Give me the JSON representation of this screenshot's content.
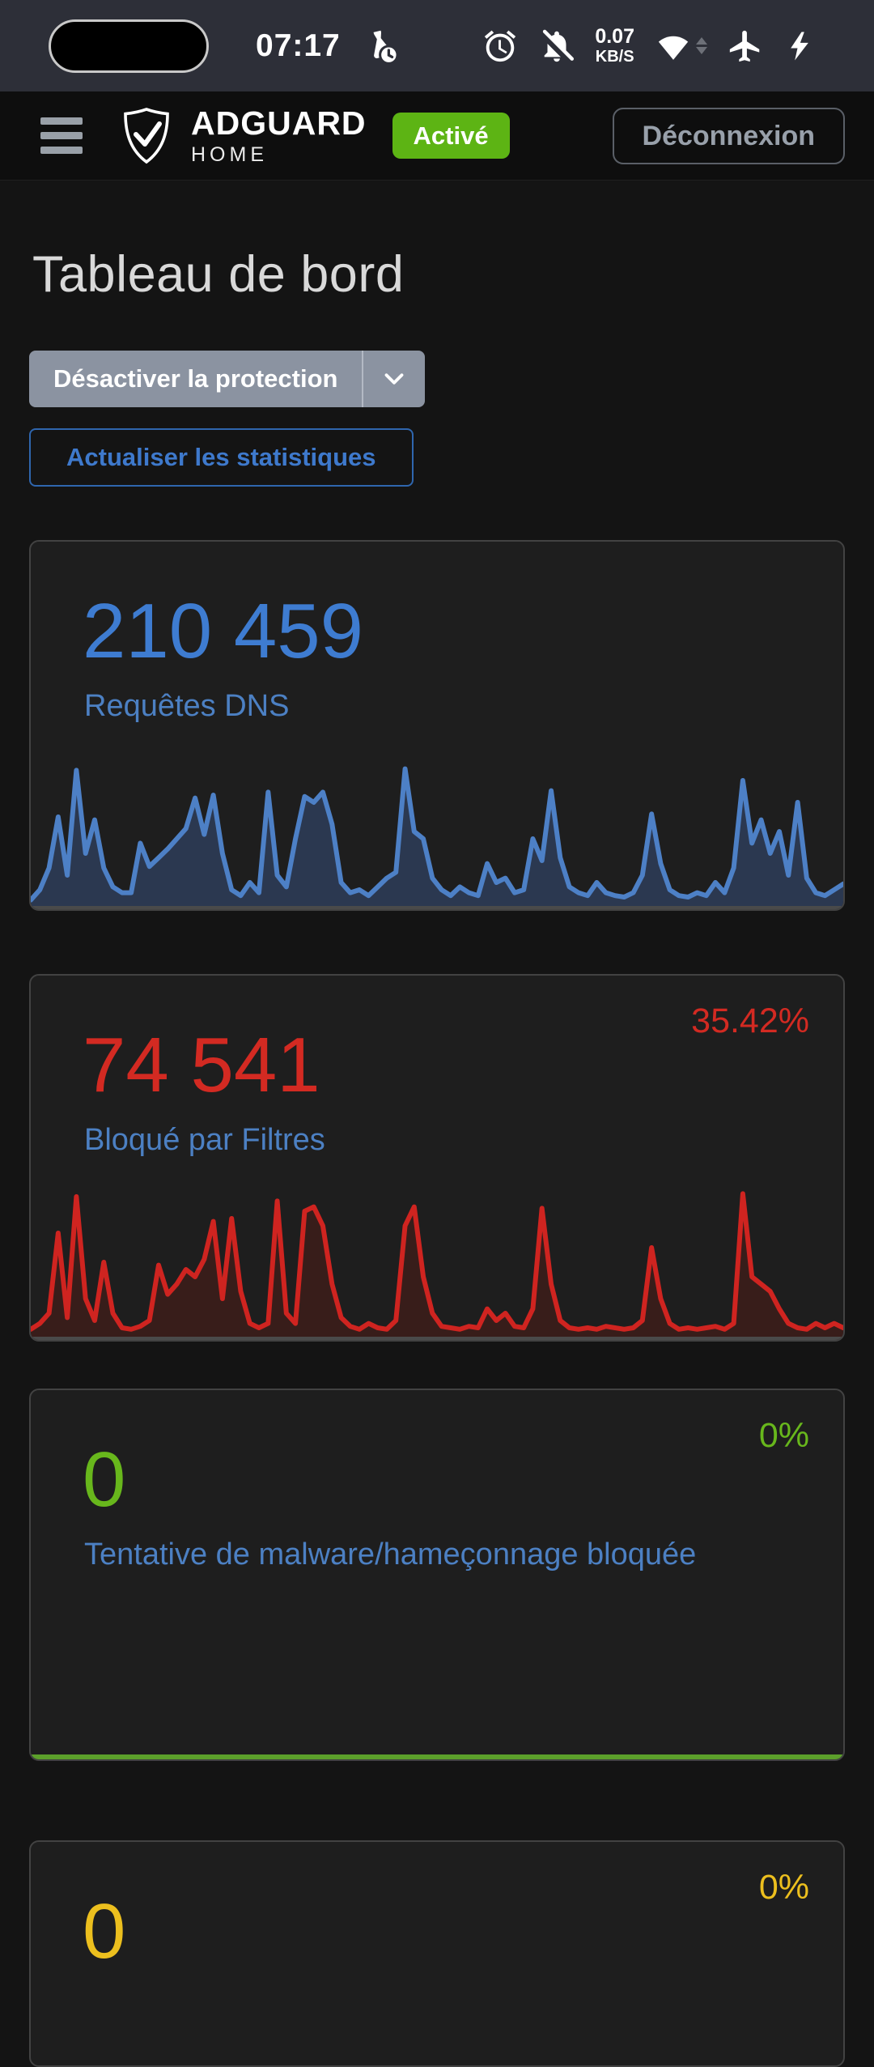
{
  "status_bar": {
    "time": "07:17",
    "network_speed_value": "0.07",
    "network_speed_unit": "KB/S",
    "icons": [
      "app-timer-icon",
      "alarm-icon",
      "notifications-off-icon",
      "wifi-icon",
      "airplane-mode-icon",
      "charging-bolt-icon"
    ]
  },
  "header": {
    "brand": "ADGUARD",
    "brand_sub": "HOME",
    "status_badge": "Activé",
    "logout_label": "Déconnexion"
  },
  "page": {
    "title": "Tableau de bord",
    "disable_protection_label": "Désactiver la protection",
    "refresh_stats_label": "Actualiser les statistiques"
  },
  "colors": {
    "accent_blue": "#3e79cc",
    "badge_green": "#5db414",
    "dns_blue": "#3e7cd1",
    "blocked_red": "#d32a22",
    "malware_green": "#68b71c",
    "parental_yellow": "#ecbf1e",
    "label_blue": "#4c80c3",
    "status_bar_bg": "#2d2f38",
    "card_bg": "#1e1e1e"
  },
  "cards": [
    {
      "id": "dns",
      "value": "210 459",
      "label": "Requêtes DNS",
      "percent": "",
      "color": "#3e7cd1"
    },
    {
      "id": "blocked",
      "value": "74 541",
      "label": "Bloqué par Filtres",
      "percent": "35.42%",
      "color": "#d32a22"
    },
    {
      "id": "malware",
      "value": "0",
      "label": "Tentative de malware/hameçonnage bloquée",
      "percent": "0%",
      "color": "#68b71c"
    },
    {
      "id": "parental",
      "value": "0",
      "label": "",
      "percent": "0%",
      "color": "#ecbf1e"
    }
  ],
  "chart_data": [
    {
      "type": "area",
      "title": "Requêtes DNS",
      "total_label": "210 459",
      "legend": "none",
      "axes_hidden": true,
      "ylim": [
        0,
        100
      ],
      "stroke": "#4d80c6",
      "fill": "#2b3850",
      "values": [
        3,
        10,
        25,
        60,
        20,
        92,
        35,
        58,
        25,
        12,
        8,
        8,
        42,
        26,
        32,
        38,
        45,
        52,
        73,
        48,
        75,
        35,
        10,
        6,
        15,
        8,
        77,
        20,
        12,
        45,
        74,
        70,
        77,
        55,
        15,
        8,
        10,
        6,
        12,
        18,
        22,
        93,
        50,
        45,
        18,
        10,
        6,
        12,
        8,
        6,
        28,
        15,
        18,
        8,
        10,
        45,
        30,
        78,
        32,
        12,
        8,
        6,
        15,
        8,
        6,
        5,
        8,
        20,
        62,
        28,
        10,
        6,
        5,
        8,
        6,
        15,
        8,
        25,
        85,
        42,
        58,
        35,
        50,
        20,
        70,
        18,
        8,
        6,
        10,
        14
      ]
    },
    {
      "type": "area",
      "title": "Bloqué par Filtres",
      "total_label": "74 541",
      "percent_of_total": "35.42%",
      "legend": "none",
      "axes_hidden": true,
      "ylim": [
        0,
        100
      ],
      "stroke": "#cf2420",
      "fill": "#381d1a",
      "values": [
        4,
        8,
        15,
        70,
        12,
        95,
        25,
        10,
        50,
        15,
        5,
        4,
        6,
        10,
        48,
        28,
        35,
        45,
        40,
        52,
        78,
        25,
        80,
        30,
        8,
        5,
        8,
        92,
        15,
        8,
        85,
        88,
        75,
        35,
        12,
        6,
        4,
        8,
        5,
        4,
        10,
        75,
        88,
        40,
        15,
        6,
        5,
        4,
        6,
        5,
        18,
        10,
        15,
        6,
        5,
        18,
        87,
        35,
        10,
        5,
        4,
        5,
        4,
        6,
        5,
        4,
        5,
        10,
        60,
        25,
        8,
        4,
        5,
        4,
        5,
        6,
        4,
        8,
        97,
        40,
        35,
        30,
        18,
        8,
        5,
        4,
        8,
        5,
        8,
        5
      ]
    },
    {
      "type": "area",
      "title": "Tentative de malware/hameçonnage bloquée",
      "total_label": "0",
      "percent_of_total": "0%",
      "legend": "none",
      "axes_hidden": true,
      "ylim": [
        0,
        100
      ],
      "stroke": "#5ca02b",
      "fill": "none",
      "values": [
        0,
        0
      ]
    }
  ]
}
